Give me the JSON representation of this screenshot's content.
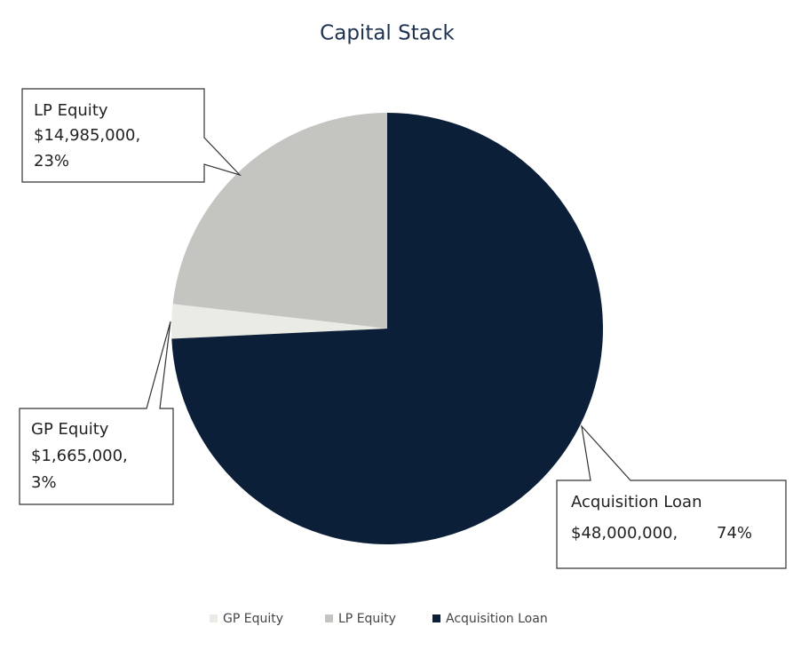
{
  "chart_data": {
    "type": "pie",
    "title": "Capital Stack",
    "categories": [
      "GP Equity",
      "LP Equity",
      "Acquisition Loan"
    ],
    "values": [
      1665000,
      14985000,
      48000000
    ],
    "value_labels": [
      "$1,665,000,",
      "$14,985,000,",
      "$48,000,000,"
    ],
    "percent_labels": [
      "3%",
      "23%",
      "74%"
    ],
    "colors": [
      "#ebebe6",
      "#c4c4c0",
      "#0b1f38"
    ],
    "legend": "bottom"
  }
}
